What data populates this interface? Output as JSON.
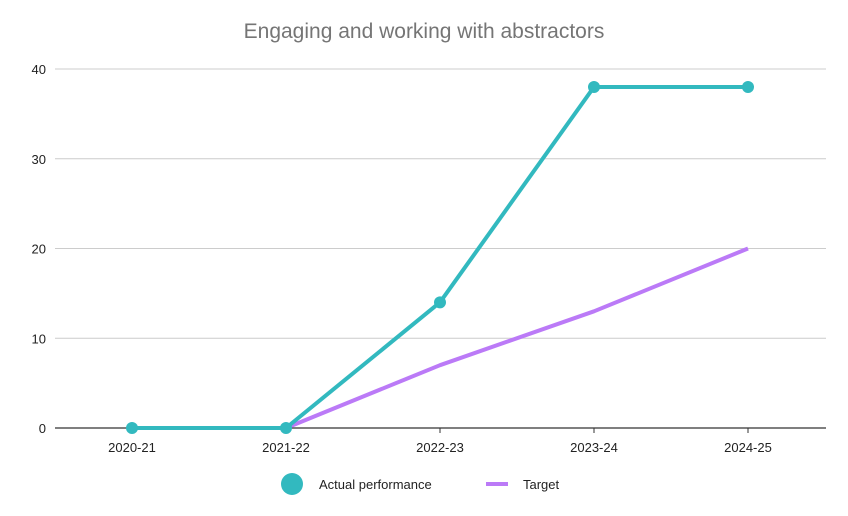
{
  "chart_data": {
    "type": "line",
    "title": "Engaging and working with abstractors",
    "xlabel": "",
    "ylabel": "",
    "categories": [
      "2020-21",
      "2021-22",
      "2022-23",
      "2023-24",
      "2024-25"
    ],
    "yticks": [
      "0",
      "10",
      "20",
      "30",
      "40"
    ],
    "ylim": [
      0,
      40
    ],
    "grid": true,
    "legend_position": "bottom",
    "series": [
      {
        "name": "Actual performance",
        "values": [
          0,
          0,
          14,
          38,
          38
        ],
        "color": "#32b9bf",
        "markers": true
      },
      {
        "name": "Target",
        "values": [
          null,
          0,
          7,
          13,
          20
        ],
        "color": "#bb7af7",
        "markers": false
      }
    ]
  }
}
